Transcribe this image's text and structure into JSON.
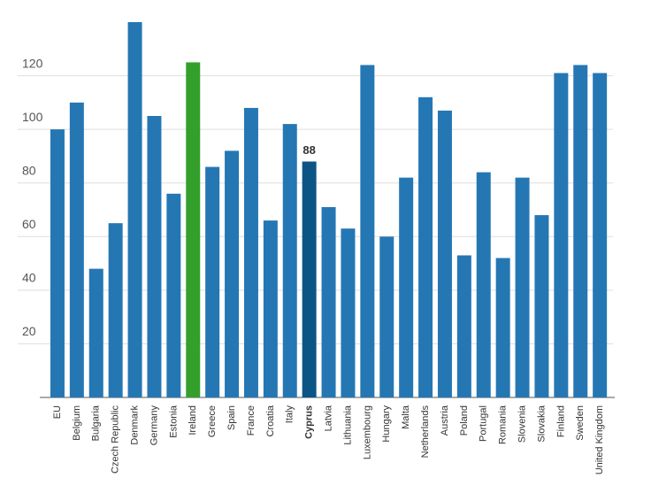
{
  "chart_data": {
    "type": "bar",
    "categories": [
      "EU",
      "Belgium",
      "Bulgaria",
      "Czech Republic",
      "Denmark",
      "Germany",
      "Estonia",
      "Ireland",
      "Greece",
      "Spain",
      "France",
      "Croatia",
      "Italy",
      "Cyprus",
      "Latvia",
      "Lithuania",
      "Luxembourg",
      "Hungary",
      "Malta",
      "Netherlands",
      "Austria",
      "Poland",
      "Portugal",
      "Romania",
      "Slovenia",
      "Slovakia",
      "Finland",
      "Sweden",
      "United Kingdom"
    ],
    "values": [
      100,
      110,
      48,
      65,
      140,
      105,
      76,
      125,
      86,
      92,
      108,
      66,
      102,
      88,
      71,
      63,
      124,
      60,
      82,
      112,
      107,
      53,
      84,
      52,
      82,
      68,
      121,
      124,
      121
    ],
    "colors": [
      "#2577b4",
      "#2577b4",
      "#2577b4",
      "#2577b4",
      "#2577b4",
      "#2577b4",
      "#2577b4",
      "#33a02c",
      "#2577b4",
      "#2577b4",
      "#2577b4",
      "#2577b4",
      "#2577b4",
      "#0b5586",
      "#2577b4",
      "#2577b4",
      "#2577b4",
      "#2577b4",
      "#2577b4",
      "#2577b4",
      "#2577b4",
      "#2577b4",
      "#2577b4",
      "#2577b4",
      "#2577b4",
      "#2577b4",
      "#2577b4",
      "#2577b4",
      "#2577b4"
    ],
    "labeled_index": 13,
    "ylim": [
      0,
      140
    ],
    "yticks": [
      20,
      40,
      60,
      80,
      100,
      120
    ],
    "grid": true
  }
}
